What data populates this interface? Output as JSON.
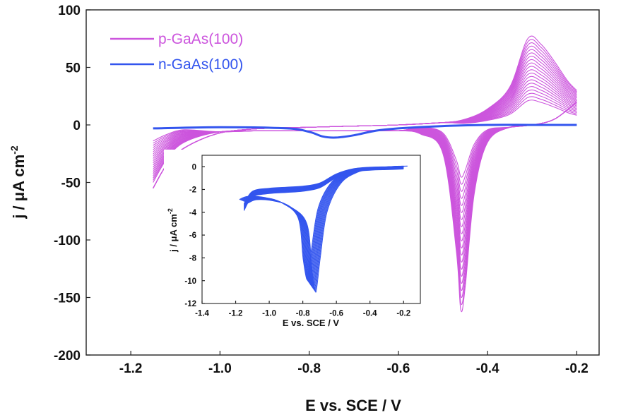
{
  "chart_data": [
    {
      "type": "line",
      "title": "",
      "xlabel": "E vs. SCE / V",
      "ylabel": "j / μA cm",
      "ylabel_superscript": "-2",
      "xlim": [
        -1.3,
        -0.15
      ],
      "ylim": [
        -200,
        100
      ],
      "xticks": [
        -1.2,
        -1.0,
        -0.8,
        -0.6,
        -0.4,
        -0.2
      ],
      "xtick_labels": [
        "-1.2",
        "-1.0",
        "-0.8",
        "-0.6",
        "-0.4",
        "-0.2"
      ],
      "yticks": [
        100,
        50,
        0,
        -50,
        -100,
        -150,
        -200
      ],
      "ytick_labels": [
        "100",
        "50",
        "0",
        "-50",
        "-100",
        "-150",
        "-200"
      ],
      "grid": false,
      "legend_position": "top-left",
      "series": [
        {
          "name": "p-GaAs(100)",
          "color": "#cc55dd",
          "sweep_count": 20,
          "forward": {
            "x": [
              -1.15,
              -1.12,
              -1.08,
              -1.0,
              -0.9,
              -0.8,
              -0.7,
              -0.6,
              -0.5,
              -0.45,
              -0.4,
              -0.35,
              -0.31,
              -0.28,
              -0.25,
              -0.22,
              -0.2
            ],
            "y": [
              -55,
              -35,
              -20,
              -7,
              -3,
              -2,
              -1,
              0,
              2,
              5,
              14,
              33,
              75,
              70,
              55,
              38,
              30
            ]
          },
          "reverse": {
            "x": [
              -0.2,
              -0.25,
              -0.3,
              -0.35,
              -0.4,
              -0.43,
              -0.45,
              -0.46,
              -0.47,
              -0.5,
              -0.55,
              -0.6,
              -0.7,
              -0.8,
              -0.9,
              -1.0,
              -1.08,
              -1.12,
              -1.15
            ],
            "y": [
              20,
              5,
              0,
              -2,
              -15,
              -60,
              -140,
              -161,
              -110,
              -25,
              -8,
              -5,
              -5,
              -5,
              -5,
              -6,
              -15,
              -30,
              -50
            ]
          }
        },
        {
          "name": "n-GaAs(100)",
          "color": "#3355ee",
          "x": [
            -1.15,
            -1.0,
            -0.85,
            -0.8,
            -0.77,
            -0.74,
            -0.7,
            -0.65,
            -0.6,
            -0.5,
            -0.4,
            -0.3,
            -0.2
          ],
          "y": [
            -3,
            -2,
            -3,
            -6,
            -10,
            -11,
            -9,
            -5,
            -3,
            -1,
            0,
            0,
            0
          ]
        }
      ]
    },
    {
      "type": "line",
      "inset": true,
      "title": "",
      "xlabel": "E vs. SCE / V",
      "ylabel": "j / μA cm",
      "ylabel_superscript": "-2",
      "xlim": [
        -1.4,
        -0.1
      ],
      "ylim": [
        -12,
        1
      ],
      "xticks": [
        -1.4,
        -1.2,
        -1.0,
        -0.8,
        -0.6,
        -0.4,
        -0.2
      ],
      "xtick_labels": [
        "-1.4",
        "-1.2",
        "-1.0",
        "-0.8",
        "-0.6",
        "-0.4",
        "-0.2"
      ],
      "yticks": [
        0,
        -2,
        -4,
        -6,
        -8,
        -10,
        -12
      ],
      "ytick_labels": [
        "0",
        "-2",
        "-4",
        "-6",
        "-8",
        "-10",
        "-12"
      ],
      "grid": false,
      "series": [
        {
          "name": "n-GaAs(100)",
          "color": "#3355ee",
          "sweep_count": 14,
          "forward": {
            "x": [
              -1.15,
              -1.1,
              -1.0,
              -0.9,
              -0.8,
              -0.7,
              -0.6,
              -0.5,
              -0.4,
              -0.3,
              -0.2
            ],
            "y": [
              -3.6,
              -2.4,
              -2.1,
              -2.0,
              -1.9,
              -1.6,
              -0.7,
              -0.2,
              -0.05,
              0.0,
              0.05
            ]
          },
          "reverse": {
            "x": [
              -0.2,
              -0.3,
              -0.4,
              -0.5,
              -0.6,
              -0.68,
              -0.72,
              -0.74,
              -0.75,
              -0.77,
              -0.8,
              -0.9,
              -1.0,
              -1.1,
              -1.15
            ],
            "y": [
              0.05,
              -0.05,
              -0.2,
              -0.5,
              -1.5,
              -4.0,
              -8.0,
              -10.5,
              -10.9,
              -9.0,
              -5.0,
              -3.5,
              -3.0,
              -2.9,
              -3.2
            ]
          }
        }
      ]
    }
  ]
}
